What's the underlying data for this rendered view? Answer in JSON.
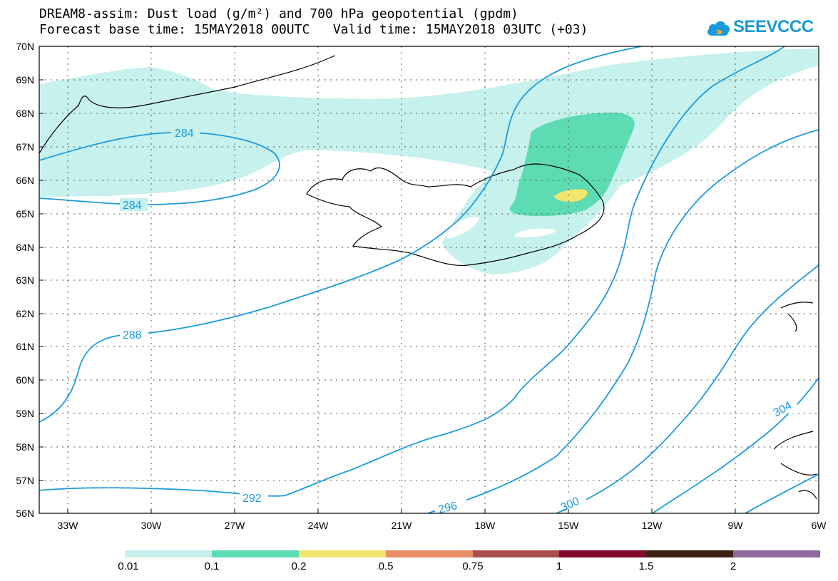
{
  "title_line1": "DREAM8-assim: Dust load (g/m²) and 700 hPa geopotential (gpdm)",
  "title_base_time": "Forecast base time: 15MAY2018 00UTC",
  "title_valid_time": "Valid time: 15MAY2018 03UTC (+03)",
  "logo": {
    "text": "SEEVCCC",
    "icon": "cloud-icon",
    "color": "#1a9ad6"
  },
  "lat_labels": [
    "70N",
    "69N",
    "68N",
    "67N",
    "66N",
    "65N",
    "64N",
    "63N",
    "62N",
    "61N",
    "60N",
    "59N",
    "58N",
    "57N",
    "56N"
  ],
  "lon_labels": [
    "33W",
    "30W",
    "27W",
    "24W",
    "21W",
    "18W",
    "15W",
    "12W",
    "9W",
    "6W"
  ],
  "contour_labels": [
    "284",
    "284",
    "288",
    "292",
    "296",
    "300",
    "304"
  ],
  "colorbar": {
    "colors": [
      "#c6f1ec",
      "#5ddcb4",
      "#f3e46d",
      "#e88e66",
      "#a94f4e",
      "#7f0a2e",
      "#3b2214",
      "#8e6a9e"
    ],
    "labels": [
      "0.01",
      "0.1",
      "0.2",
      "0.5",
      "0.75",
      "1",
      "1.5",
      "2"
    ]
  },
  "dust_colors": {
    "low": "#c6f1ec",
    "mid": "#5ddcb4",
    "high": "#f3e46d"
  },
  "contour_color": "#1c9bdc"
}
